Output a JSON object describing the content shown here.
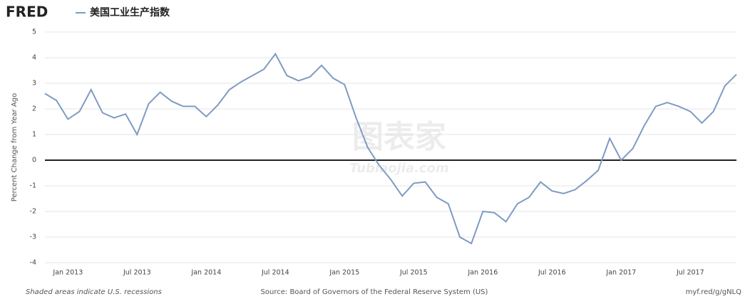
{
  "logo": "FRED",
  "watermark": {
    "cn": "图表家",
    "en": "Tubiaojia.com"
  },
  "footer": {
    "left": "Shaded areas indicate U.S. recessions",
    "source": "Source: Board of Governors of the Federal Reserve System (US)",
    "link": "myf.red/g/gNLQ"
  },
  "chart_data": {
    "type": "line",
    "ylabel": "Percent Change from Year Ago",
    "categories": [
      null,
      null,
      "Jan 2013",
      null,
      null,
      null,
      null,
      null,
      "Jul 2013",
      null,
      null,
      null,
      null,
      null,
      "Jan 2014",
      null,
      null,
      null,
      null,
      null,
      "Jul 2014",
      null,
      null,
      null,
      null,
      null,
      "Jan 2015",
      null,
      null,
      null,
      null,
      null,
      "Jul 2015",
      null,
      null,
      null,
      null,
      null,
      "Jan 2016",
      null,
      null,
      null,
      null,
      null,
      "Jul 2016",
      null,
      null,
      null,
      null,
      null,
      "Jan 2017",
      null,
      null,
      null,
      null,
      null,
      "Jul 2017",
      null,
      null,
      null,
      null
    ],
    "series": [
      {
        "name": "美国工业生产指数",
        "color": "#7f9bc2",
        "values": [
          2.6,
          2.33,
          1.6,
          1.9,
          2.75,
          1.85,
          1.65,
          1.8,
          1.0,
          2.2,
          2.65,
          2.3,
          2.1,
          2.1,
          1.7,
          2.15,
          2.75,
          3.05,
          3.3,
          3.55,
          4.15,
          3.3,
          3.1,
          3.25,
          3.7,
          3.2,
          2.95,
          1.65,
          0.5,
          -0.2,
          -0.75,
          -1.4,
          -0.9,
          -0.85,
          -1.45,
          -1.7,
          -3.0,
          -3.25,
          -2.0,
          -2.05,
          -2.4,
          -1.7,
          -1.45,
          -0.85,
          -1.2,
          -1.3,
          -1.15,
          -0.8,
          -0.4,
          0.85,
          0.0,
          0.45,
          1.35,
          2.1,
          2.25,
          2.1,
          1.9,
          1.45,
          1.9,
          2.9,
          3.35
        ]
      }
    ],
    "ylim": [
      -4,
      5
    ],
    "yticks": [
      -4,
      -3,
      -2,
      -1,
      0,
      1,
      2,
      3,
      4,
      5
    ],
    "grid": true,
    "zero_line": true
  }
}
